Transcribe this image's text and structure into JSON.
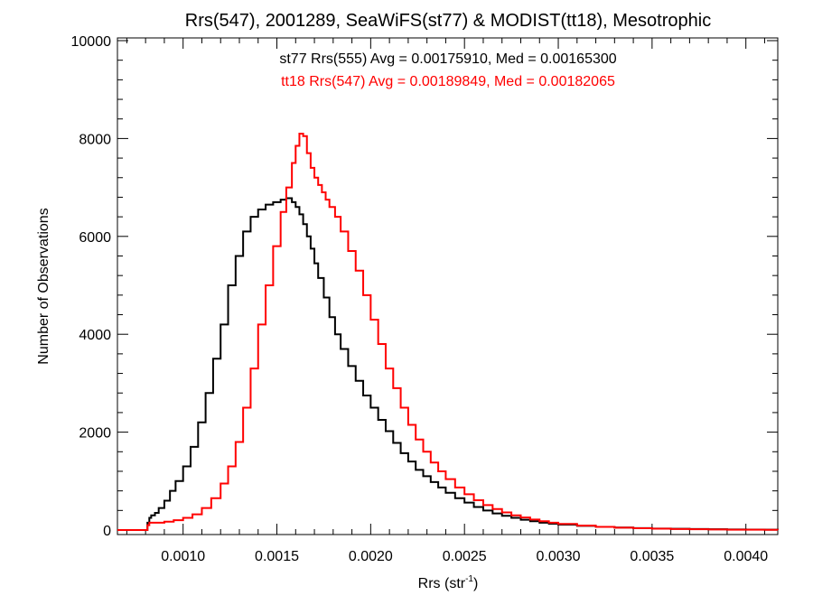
{
  "chart_data": {
    "type": "line",
    "step": true,
    "title": "Rrs(547), 2001289, SeaWiFS(st77) & MODIST(tt18), Mesotrophic",
    "xlabel": "Rrs (str",
    "xlabel_sup": "-1",
    "xlabel_end": ")",
    "ylabel": "Number of Observations",
    "xlim": [
      0.00065,
      0.00417
    ],
    "ylim": [
      0,
      10000
    ],
    "xticks": [
      0.001,
      0.0015,
      0.002,
      0.0025,
      0.003,
      0.0035,
      0.004
    ],
    "xtick_labels": [
      "0.0010",
      "0.0015",
      "0.0020",
      "0.0025",
      "0.0030",
      "0.0035",
      "0.0040"
    ],
    "yticks": [
      0,
      2000,
      4000,
      6000,
      8000,
      10000
    ],
    "ytick_labels": [
      "0",
      "2000",
      "4000",
      "6000",
      "8000",
      "10000"
    ],
    "grid": false,
    "annotations": [
      {
        "text": "st77 Rrs(555) Avg = 0.00175910, Med = 0.00165300",
        "color": "#000000"
      },
      {
        "text": "tt18 Rrs(547) Avg = 0.00189849, Med = 0.00182065",
        "color": "#ff0000"
      }
    ],
    "series": [
      {
        "color": "#000000",
        "x": [
          0.0008,
          0.00081,
          0.00082,
          0.00083,
          0.00085,
          0.00087,
          0.0009,
          0.00093,
          0.00096,
          0.001,
          0.00104,
          0.00108,
          0.00112,
          0.00116,
          0.0012,
          0.00124,
          0.00128,
          0.00132,
          0.00136,
          0.0014,
          0.00144,
          0.00148,
          0.00152,
          0.00155,
          0.00158,
          0.0016,
          0.00162,
          0.00164,
          0.00166,
          0.00168,
          0.0017,
          0.00172,
          0.00175,
          0.00178,
          0.00181,
          0.00184,
          0.00188,
          0.00192,
          0.00196,
          0.002,
          0.00204,
          0.00208,
          0.00212,
          0.00216,
          0.0022,
          0.00224,
          0.00228,
          0.00232,
          0.00236,
          0.0024,
          0.00245,
          0.0025,
          0.00255,
          0.0026,
          0.00265,
          0.0027,
          0.00275,
          0.0028,
          0.00285,
          0.0029,
          0.00295,
          0.003,
          0.0031,
          0.0032,
          0.0033,
          0.0034,
          0.0035,
          0.0036,
          0.0037,
          0.0038,
          0.0039,
          0.004,
          0.0041,
          0.00417
        ],
        "values": [
          0,
          150,
          250,
          300,
          350,
          450,
          600,
          800,
          1000,
          1300,
          1700,
          2200,
          2800,
          3500,
          4200,
          5000,
          5600,
          6100,
          6400,
          6550,
          6650,
          6700,
          6750,
          6780,
          6700,
          6600,
          6450,
          6250,
          6000,
          5750,
          5450,
          5150,
          4750,
          4350,
          4000,
          3700,
          3350,
          3050,
          2750,
          2500,
          2250,
          2020,
          1780,
          1570,
          1400,
          1230,
          1100,
          980,
          870,
          760,
          650,
          560,
          470,
          400,
          340,
          290,
          250,
          210,
          180,
          150,
          130,
          110,
          85,
          65,
          50,
          40,
          30,
          25,
          20,
          15,
          12,
          10,
          8,
          6
        ]
      },
      {
        "color": "#ff0000",
        "x": [
          0.0008,
          0.00081,
          0.00082,
          0.00083,
          0.00085,
          0.0009,
          0.00095,
          0.001,
          0.00105,
          0.0011,
          0.00115,
          0.0012,
          0.00124,
          0.00128,
          0.00132,
          0.00136,
          0.0014,
          0.00144,
          0.00148,
          0.00152,
          0.00155,
          0.00158,
          0.0016,
          0.00162,
          0.00164,
          0.00166,
          0.00168,
          0.0017,
          0.00172,
          0.00174,
          0.00176,
          0.00178,
          0.00181,
          0.00184,
          0.00188,
          0.00192,
          0.00196,
          0.002,
          0.00204,
          0.00208,
          0.00212,
          0.00216,
          0.0022,
          0.00224,
          0.00228,
          0.00232,
          0.00236,
          0.0024,
          0.00245,
          0.0025,
          0.00255,
          0.0026,
          0.00265,
          0.0027,
          0.00275,
          0.0028,
          0.00285,
          0.0029,
          0.00295,
          0.003,
          0.0031,
          0.0032,
          0.0033,
          0.0034,
          0.0035,
          0.0036,
          0.0037,
          0.0038,
          0.0039,
          0.004,
          0.0041,
          0.00417
        ],
        "values": [
          0,
          100,
          150,
          150,
          150,
          170,
          200,
          250,
          320,
          450,
          650,
          950,
          1300,
          1800,
          2500,
          3300,
          4200,
          5000,
          5800,
          6500,
          7000,
          7500,
          7850,
          8100,
          8050,
          7700,
          7400,
          7200,
          7050,
          6900,
          6750,
          6600,
          6400,
          6100,
          5700,
          5300,
          4800,
          4300,
          3800,
          3300,
          2900,
          2500,
          2150,
          1850,
          1600,
          1380,
          1200,
          1040,
          870,
          730,
          610,
          510,
          430,
          360,
          300,
          255,
          215,
          180,
          150,
          125,
          90,
          65,
          48,
          36,
          27,
          20,
          15,
          11,
          8,
          6,
          4,
          3
        ]
      }
    ]
  }
}
